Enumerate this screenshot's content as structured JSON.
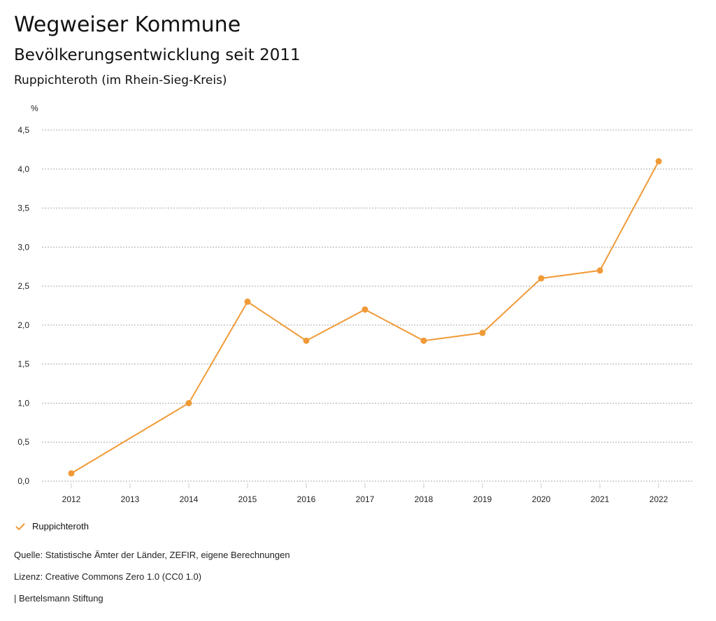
{
  "header": {
    "title": "Wegweiser Kommune",
    "subtitle": "Bevölkerungsentwicklung seit 2011",
    "region": "Ruppichteroth (im Rhein-Sieg-Kreis)"
  },
  "chart_data": {
    "type": "line",
    "ylabel": "%",
    "ylim": [
      0,
      4.5
    ],
    "yticks": [
      "0,0",
      "0,5",
      "1,0",
      "1,5",
      "2,0",
      "2,5",
      "3,0",
      "3,5",
      "4,0",
      "4,5"
    ],
    "categories": [
      "2012",
      "2013",
      "2014",
      "2015",
      "2016",
      "2017",
      "2018",
      "2019",
      "2020",
      "2021",
      "2022"
    ],
    "series": [
      {
        "name": "Ruppichteroth",
        "color": "#f09a37",
        "values": [
          0.1,
          null,
          1.0,
          2.3,
          1.8,
          2.2,
          1.8,
          1.9,
          2.6,
          2.7,
          4.1
        ]
      }
    ],
    "grid": true,
    "legend": "bottom-left"
  },
  "footer": {
    "source": "Quelle: Statistische Ämter der Länder, ZEFIR, eigene Berechnungen",
    "license": "Lizenz: Creative Commons Zero 1.0 (CC0 1.0)",
    "publisher": "| Bertelsmann Stiftung"
  }
}
